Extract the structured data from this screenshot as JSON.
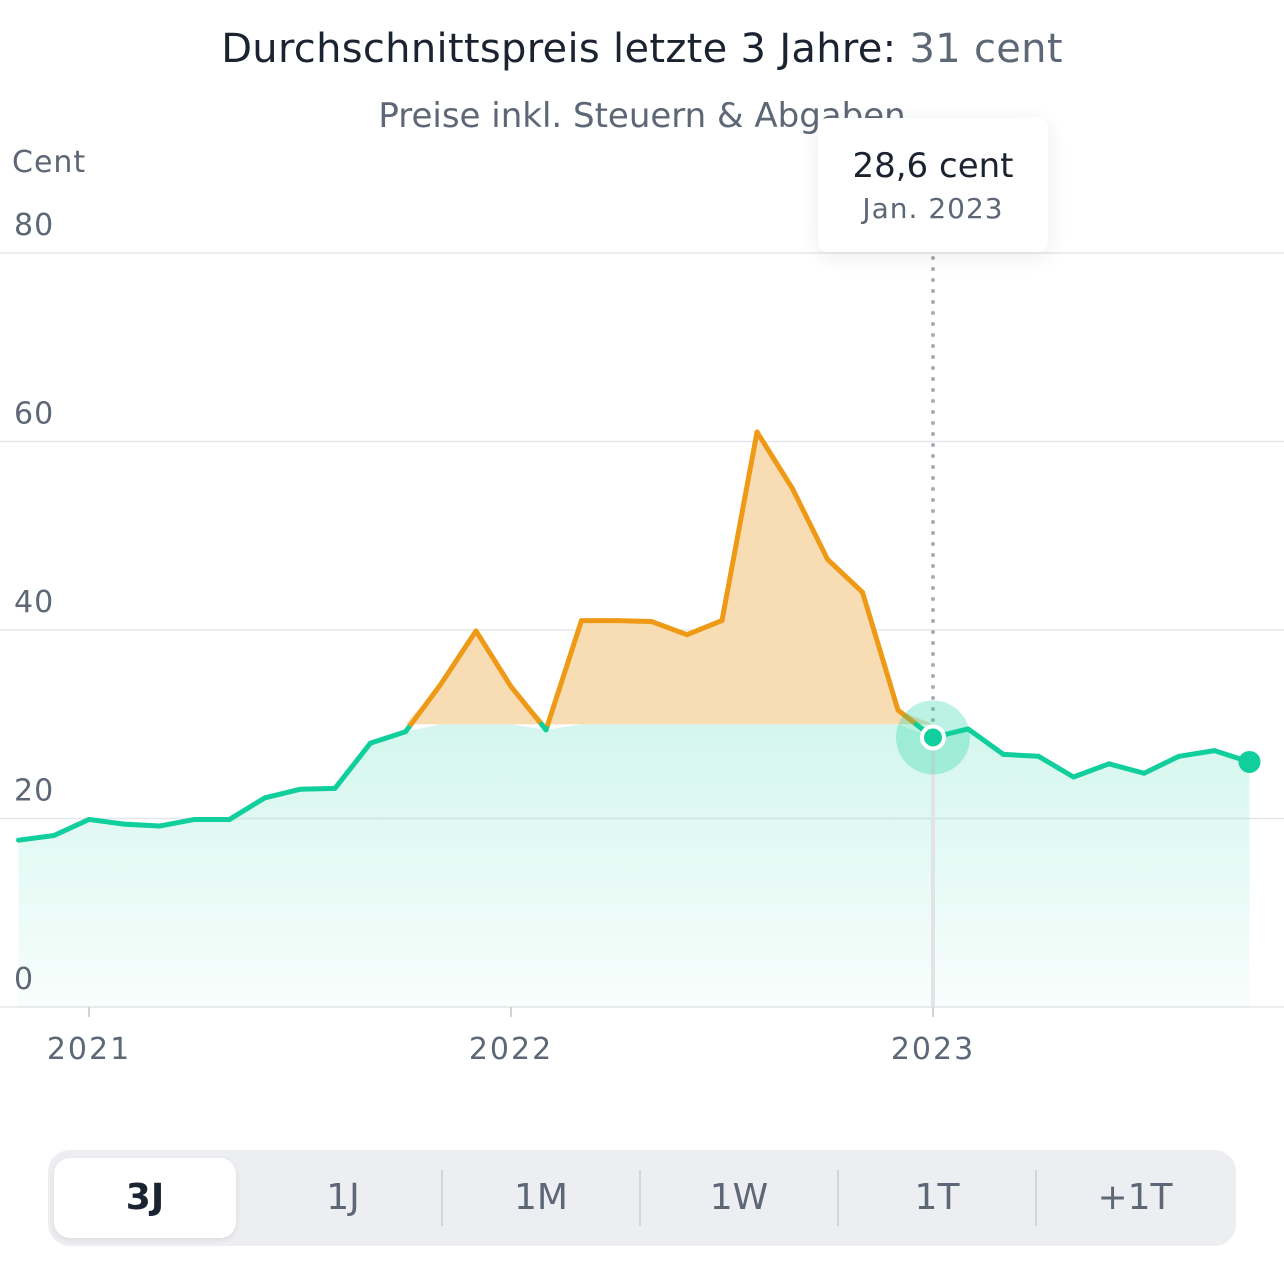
{
  "header": {
    "title_prefix": "Durchschnittspreis letzte 3 Jahre:",
    "title_value": "31 cent",
    "subtitle": "Preise inkl. Steuern & Abgaben"
  },
  "tooltip": {
    "value": "28,6 cent",
    "date": "Jan. 2023"
  },
  "colors": {
    "green": "#10cf9c",
    "orange": "#ef9a16",
    "orange_fill": "#f8dcb4",
    "grid": "#e6e7ea",
    "axis_text": "#5d6776"
  },
  "chart_data": {
    "type": "line",
    "title": "Durchschnittspreis letzte 3 Jahre: 31 cent",
    "subtitle": "Preise inkl. Steuern & Abgaben",
    "ylabel": "Cent",
    "xlabel": "",
    "ylim": [
      0,
      80
    ],
    "yticks": [
      0,
      20,
      40,
      60,
      80
    ],
    "xticks": [
      {
        "label": "2021",
        "x": 2021.0
      },
      {
        "label": "2022",
        "x": 2022.0
      },
      {
        "label": "2023",
        "x": 2023.0
      }
    ],
    "threshold": 30,
    "highlight": {
      "x": 2023.0,
      "value": 28.6,
      "label": "Jan. 2023"
    },
    "series": [
      {
        "name": "Durchschnittspreis",
        "x": [
          2020.833,
          2020.917,
          2021.0,
          2021.083,
          2021.167,
          2021.25,
          2021.333,
          2021.417,
          2021.5,
          2021.583,
          2021.667,
          2021.75,
          2021.833,
          2021.917,
          2022.0,
          2022.083,
          2022.167,
          2022.25,
          2022.333,
          2022.417,
          2022.5,
          2022.583,
          2022.667,
          2022.75,
          2022.833,
          2022.917,
          2023.0,
          2023.083,
          2023.167,
          2023.25,
          2023.333,
          2023.417,
          2023.5,
          2023.583,
          2023.667,
          2023.75
        ],
        "values": [
          17.7,
          18.2,
          19.9,
          19.4,
          19.2,
          19.9,
          19.9,
          22.2,
          23.1,
          23.2,
          28.0,
          29.2,
          34.2,
          39.9,
          34.0,
          29.4,
          41.0,
          41.0,
          40.9,
          39.5,
          41.0,
          61.0,
          55.0,
          47.5,
          44.0,
          31.5,
          28.6,
          29.5,
          26.8,
          26.6,
          24.4,
          25.8,
          24.8,
          26.6,
          27.2,
          26.0
        ]
      }
    ]
  },
  "y_axis_title": "Cent",
  "tabs": [
    {
      "label": "3J",
      "active": true
    },
    {
      "label": "1J",
      "active": false
    },
    {
      "label": "1M",
      "active": false
    },
    {
      "label": "1W",
      "active": false
    },
    {
      "label": "1T",
      "active": false
    },
    {
      "label": "+1T",
      "active": false
    }
  ]
}
